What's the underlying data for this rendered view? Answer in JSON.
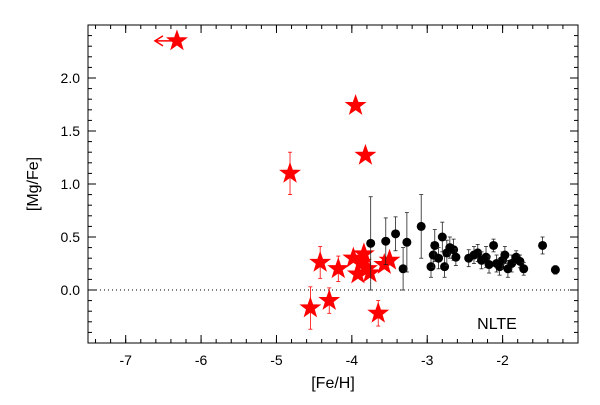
{
  "chart_data": {
    "type": "scatter",
    "xlabel": "[Fe/H]",
    "ylabel": "[Mg/Fe]",
    "annotation": "NLTE",
    "xlim": [
      -7.5,
      -1.0
    ],
    "ylim": [
      -0.5,
      2.5
    ],
    "x_ticks": [
      -7,
      -6,
      -5,
      -4,
      -3,
      -2
    ],
    "x_tick_labels": [
      "-7",
      "-6",
      "-5",
      "-4",
      "-3",
      "-2"
    ],
    "y_ticks": [
      0.0,
      0.5,
      1.0,
      1.5,
      2.0
    ],
    "y_tick_labels": [
      "0.0",
      "0.5",
      "1.0",
      "1.5",
      "2.0"
    ],
    "reference_line_y": 0.0,
    "reference_line_style": "dotted",
    "grid": false,
    "series": [
      {
        "marker": "star",
        "color": "#ff0000",
        "points": [
          {
            "x": -6.32,
            "y": 2.35,
            "upper_limit_arrow": true
          },
          {
            "x": -3.95,
            "y": 1.74
          },
          {
            "x": -3.82,
            "y": 1.27
          },
          {
            "x": -4.82,
            "y": 1.1,
            "err": 0.2
          },
          {
            "x": -4.42,
            "y": 0.26,
            "err": 0.15
          },
          {
            "x": -4.18,
            "y": 0.2,
            "err": 0.12
          },
          {
            "x": -3.98,
            "y": 0.3
          },
          {
            "x": -3.92,
            "y": 0.15
          },
          {
            "x": -3.88,
            "y": 0.26
          },
          {
            "x": -3.84,
            "y": 0.34
          },
          {
            "x": -3.8,
            "y": 0.2
          },
          {
            "x": -3.76,
            "y": 0.16
          },
          {
            "x": -3.57,
            "y": 0.24
          },
          {
            "x": -3.5,
            "y": 0.28
          },
          {
            "x": -4.55,
            "y": -0.17,
            "err": 0.2
          },
          {
            "x": -4.3,
            "y": -0.1,
            "err": 0.12
          },
          {
            "x": -3.65,
            "y": -0.22,
            "err": 0.12
          }
        ]
      },
      {
        "marker": "circle",
        "color": "#000000",
        "points": [
          {
            "x": -3.75,
            "y": 0.44,
            "err": 0.44
          },
          {
            "x": -3.55,
            "y": 0.46,
            "err": 0.22
          },
          {
            "x": -3.42,
            "y": 0.53,
            "err": 0.16
          },
          {
            "x": -3.32,
            "y": 0.2,
            "err": 0.2
          },
          {
            "x": -3.27,
            "y": 0.45,
            "err": 0.28
          },
          {
            "x": -3.08,
            "y": 0.6,
            "err": 0.3
          },
          {
            "x": -2.95,
            "y": 0.22,
            "err": 0.1
          },
          {
            "x": -2.92,
            "y": 0.33,
            "err": 0.12
          },
          {
            "x": -2.9,
            "y": 0.42,
            "err": 0.15
          },
          {
            "x": -2.85,
            "y": 0.3,
            "err": 0.1
          },
          {
            "x": -2.8,
            "y": 0.5,
            "err": 0.14
          },
          {
            "x": -2.77,
            "y": 0.22,
            "err": 0.1
          },
          {
            "x": -2.74,
            "y": 0.35,
            "err": 0.12
          },
          {
            "x": -2.7,
            "y": 0.4,
            "err": 0.1
          },
          {
            "x": -2.65,
            "y": 0.38,
            "err": 0.1
          },
          {
            "x": -2.62,
            "y": 0.31,
            "err": 0.08
          },
          {
            "x": -2.45,
            "y": 0.3,
            "err": 0.08
          },
          {
            "x": -2.38,
            "y": 0.33,
            "err": 0.08
          },
          {
            "x": -2.33,
            "y": 0.35,
            "err": 0.08
          },
          {
            "x": -2.28,
            "y": 0.28,
            "err": 0.08
          },
          {
            "x": -2.22,
            "y": 0.31,
            "err": 0.1
          },
          {
            "x": -2.18,
            "y": 0.24,
            "err": 0.08
          },
          {
            "x": -2.12,
            "y": 0.42,
            "err": 0.06
          },
          {
            "x": -2.08,
            "y": 0.25,
            "err": 0.08
          },
          {
            "x": -2.04,
            "y": 0.22,
            "err": 0.08
          },
          {
            "x": -2.0,
            "y": 0.28,
            "err": 0.08
          },
          {
            "x": -1.97,
            "y": 0.33,
            "err": 0.08
          },
          {
            "x": -1.93,
            "y": 0.2,
            "err": 0.08
          },
          {
            "x": -1.88,
            "y": 0.25,
            "err": 0.08
          },
          {
            "x": -1.82,
            "y": 0.31,
            "err": 0.06
          },
          {
            "x": -1.77,
            "y": 0.27,
            "err": 0.06
          },
          {
            "x": -1.72,
            "y": 0.2,
            "err": 0.06
          },
          {
            "x": -1.47,
            "y": 0.42,
            "err": 0.08
          },
          {
            "x": -1.3,
            "y": 0.19,
            "err": 0.04
          }
        ]
      }
    ]
  }
}
